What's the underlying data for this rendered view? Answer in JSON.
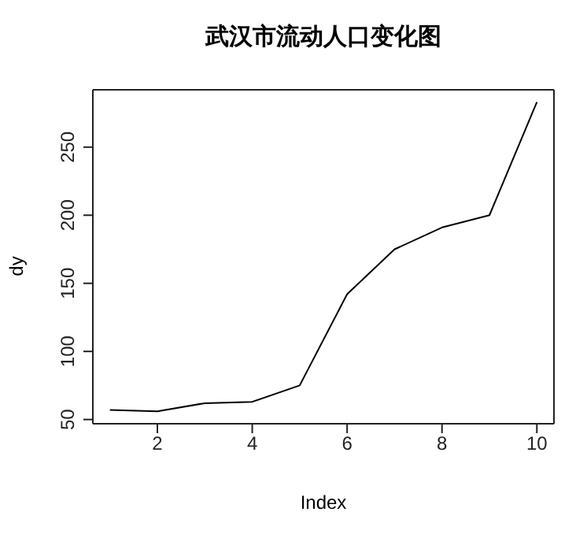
{
  "chart_data": {
    "type": "line",
    "title": "武汉市流动人口变化图",
    "xlabel": "Index",
    "ylabel": "dy",
    "x": [
      1,
      2,
      3,
      4,
      5,
      6,
      7,
      8,
      9,
      10
    ],
    "series": [
      {
        "color": "#000000",
        "values": [
          57,
          56,
          62,
          63,
          75,
          142,
          175,
          191,
          200,
          283
        ]
      }
    ],
    "xlim": [
      0.64,
      10.36
    ],
    "xticks": [
      2,
      4,
      6,
      8,
      10
    ],
    "ylim": [
      46.9,
      292.1
    ],
    "yticks": [
      50,
      100,
      150,
      200,
      250
    ]
  }
}
